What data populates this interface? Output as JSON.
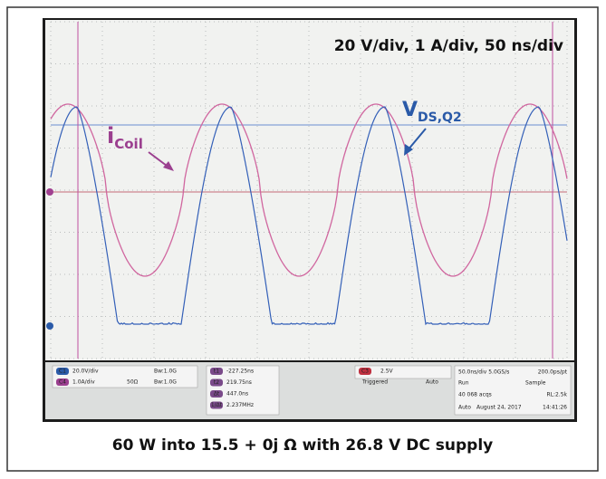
{
  "figure": {
    "scale_note": "20 V/div, 1 A/div, 50 ns/div",
    "coil_label": {
      "main": "i",
      "sub": "Coil"
    },
    "vds_label": {
      "main": "V",
      "sub": "DS,Q2"
    },
    "caption": "60 W into 15.5 + 0j Ω with 26.8 V DC supply",
    "status": {
      "channels": [
        {
          "id": "C1",
          "scale": "20.0V/div",
          "bw": "Bw:1.0G"
        },
        {
          "id": "C4",
          "scale": "1.0A/div",
          "imp": "50Ω",
          "bw": "Bw:1.0G"
        }
      ],
      "cursors": [
        {
          "id": "t1",
          "value": "-227.25ns"
        },
        {
          "id": "t2",
          "value": "219.75ns"
        },
        {
          "id": "Δt",
          "value": "447.0ns"
        },
        {
          "id": "1/Δt",
          "value": "2.237MHz"
        }
      ],
      "trigger": {
        "source": "C3",
        "level": "2.5V",
        "state": "Triggered",
        "mode": "Auto"
      },
      "acq": {
        "timebase": "50.0ns/div 5.0GS/s",
        "res": "200.0ps/pt",
        "run": "Run",
        "sample": "Sample",
        "acqs": "40 068 acqs",
        "rl": "RL:2.5k",
        "auto": "Auto",
        "date": "August 24, 2017",
        "time": "14:41:26"
      }
    }
  }
}
